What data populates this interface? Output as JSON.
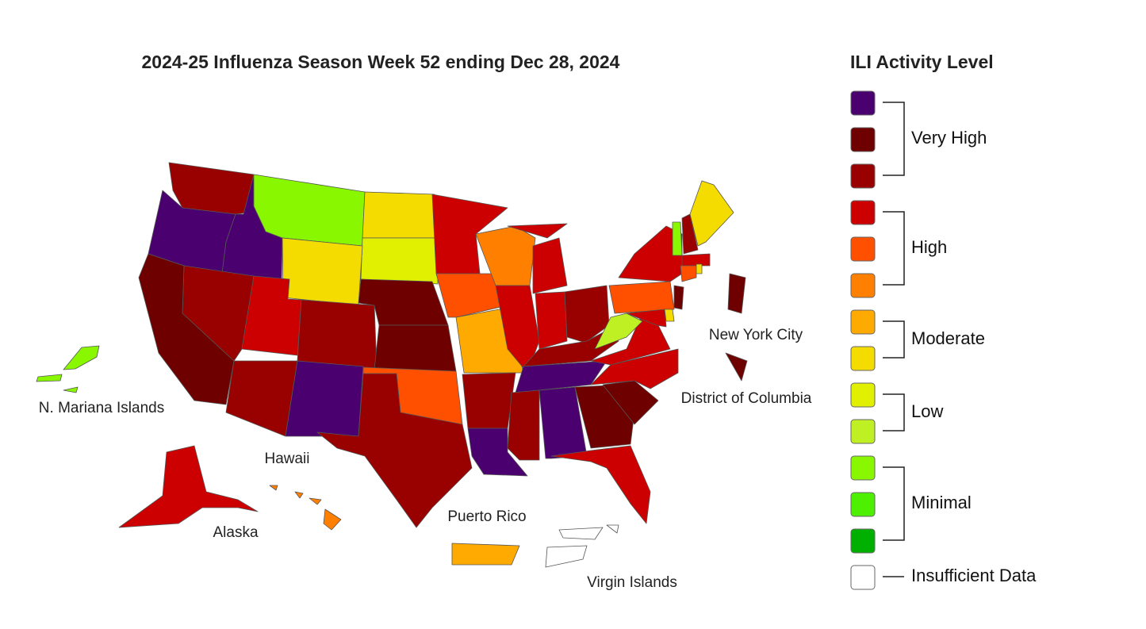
{
  "title": "2024-25 Influenza Season Week 52 ending Dec 28, 2024",
  "territory_labels": [
    "New York City",
    "District of Columbia",
    "N. Mariana Islands",
    "Hawaii",
    "Alaska",
    "Puerto Rico",
    "Virgin Islands"
  ],
  "legend": {
    "title": "ILI Activity Level",
    "colors": [
      "#4b0070",
      "#6e0000",
      "#990000",
      "#cc0000",
      "#ff5000",
      "#ff8000",
      "#ffaa00",
      "#f5dc00",
      "#e0f000",
      "#bef023",
      "#88f700",
      "#4cf000",
      "#00b000",
      "#ffffff"
    ],
    "groups": [
      "Very High",
      "High",
      "Moderate",
      "Low",
      "Minimal",
      "Insufficient Data"
    ]
  }
}
